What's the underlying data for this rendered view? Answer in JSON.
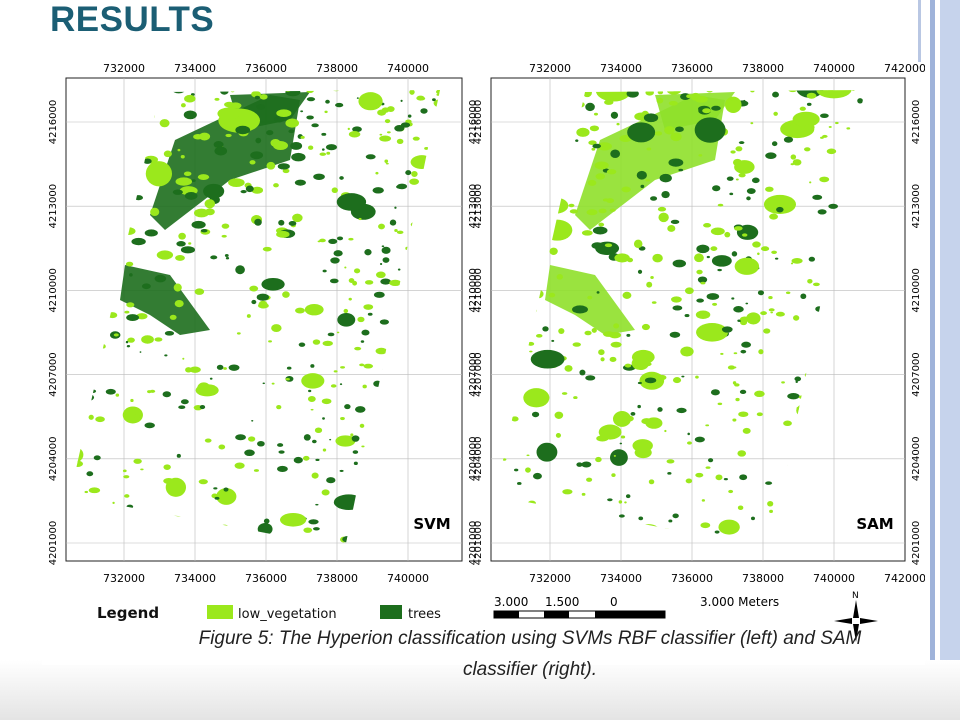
{
  "title": "RESULTS",
  "maps": [
    {
      "label": "SVM",
      "x_ticks": [
        "732000",
        "734000",
        "736000",
        "738000",
        "740000"
      ],
      "y_ticks": [
        "4216000",
        "4213000",
        "4210000",
        "4207000",
        "4204000",
        "4201000"
      ]
    },
    {
      "label": "SAM",
      "x_ticks": [
        "732000",
        "734000",
        "736000",
        "738000",
        "740000",
        "742000"
      ],
      "y_ticks": [
        "4216000",
        "4213000",
        "4210000",
        "4207000",
        "4204000",
        "4201000"
      ]
    }
  ],
  "legend": {
    "title": "Legend",
    "items": [
      "low_vegetation",
      "trees"
    ]
  },
  "scale_bar": {
    "labels": [
      "3.000",
      "1.500",
      "0",
      "3.000 Meters"
    ]
  },
  "north_label": "N",
  "caption_lines": [
    "Figure 5: The Hyperion classification using SVMs RBF classifier (left) and SAM",
    "classifier (right)."
  ]
}
